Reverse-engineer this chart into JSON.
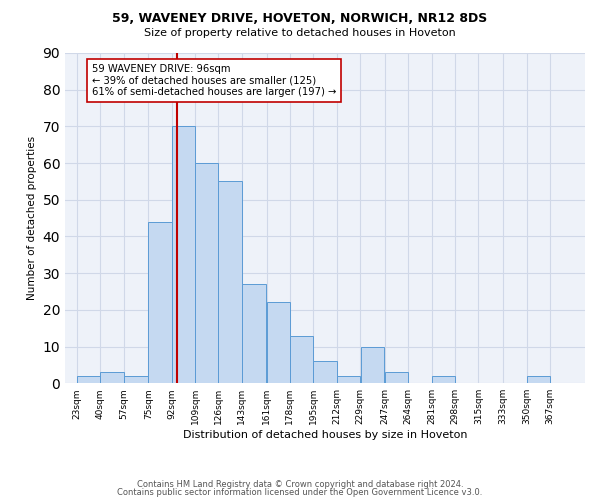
{
  "title1": "59, WAVENEY DRIVE, HOVETON, NORWICH, NR12 8DS",
  "title2": "Size of property relative to detached houses in Hoveton",
  "xlabel": "Distribution of detached houses by size in Hoveton",
  "ylabel": "Number of detached properties",
  "bin_labels": [
    "23sqm",
    "40sqm",
    "57sqm",
    "75sqm",
    "92sqm",
    "109sqm",
    "126sqm",
    "143sqm",
    "161sqm",
    "178sqm",
    "195sqm",
    "212sqm",
    "229sqm",
    "247sqm",
    "264sqm",
    "281sqm",
    "298sqm",
    "315sqm",
    "333sqm",
    "350sqm",
    "367sqm"
  ],
  "bin_edges": [
    23,
    40,
    57,
    75,
    92,
    109,
    126,
    143,
    161,
    178,
    195,
    212,
    229,
    247,
    264,
    281,
    298,
    315,
    333,
    350,
    367,
    384
  ],
  "bar_values": [
    2,
    3,
    2,
    44,
    70,
    60,
    55,
    27,
    22,
    13,
    6,
    2,
    10,
    3,
    0,
    2,
    0,
    0,
    0,
    2,
    0
  ],
  "bar_color": "#c5d9f1",
  "bar_edge_color": "#5b9bd5",
  "property_value": 96,
  "vline_color": "#c00000",
  "annotation_line1": "59 WAVENEY DRIVE: 96sqm",
  "annotation_line2": "← 39% of detached houses are smaller (125)",
  "annotation_line3": "61% of semi-detached houses are larger (197) →",
  "annotation_box_color": "#ffffff",
  "annotation_border_color": "#c00000",
  "grid_color": "#d0d8e8",
  "background_color": "#eef2f9",
  "ylim": [
    0,
    90
  ],
  "yticks": [
    0,
    10,
    20,
    30,
    40,
    50,
    60,
    70,
    80,
    90
  ],
  "footer1": "Contains HM Land Registry data © Crown copyright and database right 2024.",
  "footer2": "Contains public sector information licensed under the Open Government Licence v3.0."
}
